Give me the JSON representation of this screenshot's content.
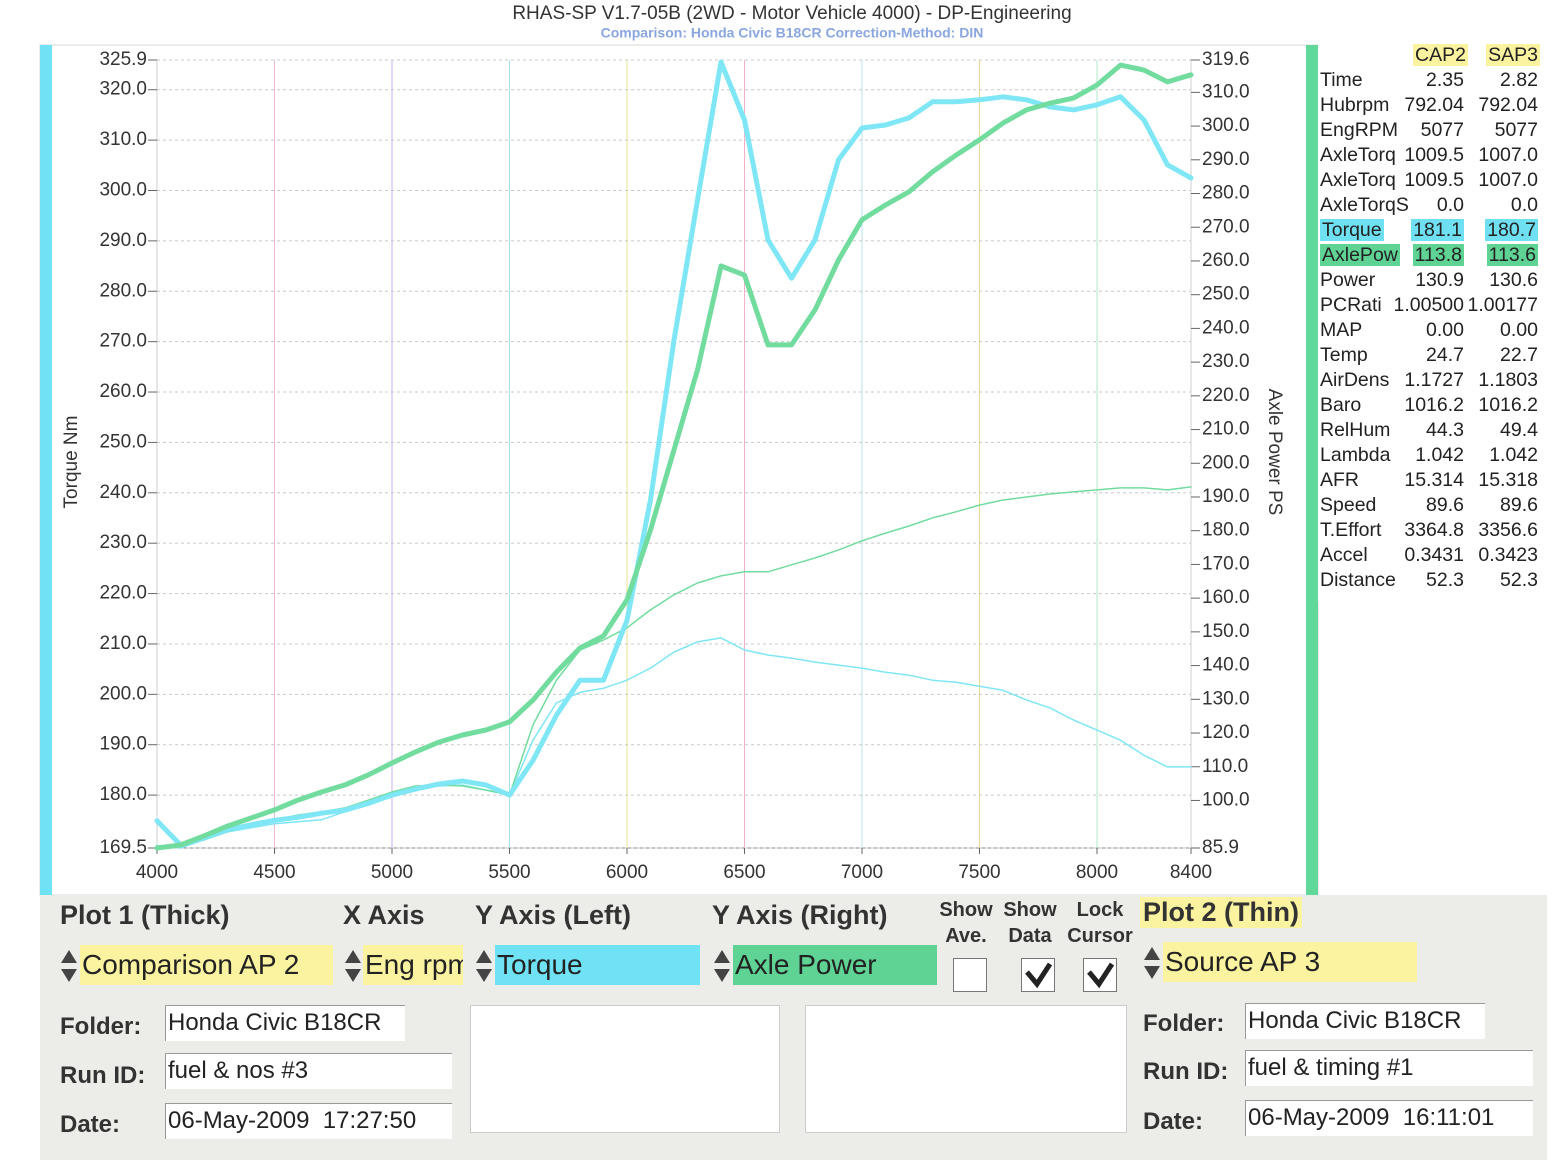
{
  "header": {
    "title": "RHAS-SP V1.7-05B   (2WD - Motor Vehicle 4000) - DP-Engineering",
    "subtitle": "Comparison: Honda Civic B18CR    Correction-Method: DIN"
  },
  "chart_data": {
    "type": "line",
    "y_label": "Torque Nm",
    "y2_label": "Axle Power PS",
    "x": [
      4000,
      4100,
      4200,
      4300,
      4400,
      4500,
      4600,
      4700,
      4800,
      4900,
      5000,
      5100,
      5200,
      5300,
      5400,
      5500,
      5600,
      5700,
      5800,
      5900,
      6000,
      6100,
      6200,
      6300,
      6400,
      6500,
      6600,
      6700,
      6800,
      6900,
      7000,
      7100,
      7200,
      7300,
      7400,
      7500,
      7600,
      7700,
      7800,
      7900,
      8000,
      8100,
      8200,
      8300,
      8400
    ],
    "xlim": [
      4000,
      8400
    ],
    "xticks": [
      4000,
      4500,
      5000,
      5500,
      6000,
      6500,
      7000,
      7500,
      8000,
      8400
    ],
    "ylim": [
      169.5,
      325.9
    ],
    "yticks": [
      169.5,
      {
        "value": 180,
        "label": "180.0"
      },
      {
        "value": 190,
        "label": "190.0"
      },
      {
        "value": 200,
        "label": "200.0"
      },
      {
        "value": 210,
        "label": "210.0"
      },
      {
        "value": 220,
        "label": "220.0"
      },
      {
        "value": 230,
        "label": "230.0"
      },
      {
        "value": 240,
        "label": "240.0"
      },
      {
        "value": 250,
        "label": "250.0"
      },
      {
        "value": 260,
        "label": "260.0"
      },
      {
        "value": 270,
        "label": "270.0"
      },
      {
        "value": 280,
        "label": "280.0"
      },
      {
        "value": 290,
        "label": "290.0"
      },
      {
        "value": 300,
        "label": "300.0"
      },
      {
        "value": 310,
        "label": "310.0"
      },
      {
        "value": 320,
        "label": "320.0"
      },
      325.9
    ],
    "y2lim": [
      85.9,
      319.6
    ],
    "y2ticks": [
      85.9,
      {
        "value": 100,
        "label": "100.0"
      },
      {
        "value": 110,
        "label": "110.0"
      },
      {
        "value": 120,
        "label": "120.0"
      },
      {
        "value": 130,
        "label": "130.0"
      },
      {
        "value": 140,
        "label": "140.0"
      },
      {
        "value": 150,
        "label": "150.0"
      },
      {
        "value": 160,
        "label": "160.0"
      },
      {
        "value": 170,
        "label": "170.0"
      },
      {
        "value": 180,
        "label": "180.0"
      },
      {
        "value": 190,
        "label": "190.0"
      },
      {
        "value": 200,
        "label": "200.0"
      },
      {
        "value": 210,
        "label": "210.0"
      },
      {
        "value": 220,
        "label": "220.0"
      },
      {
        "value": 230,
        "label": "230.0"
      },
      {
        "value": 240,
        "label": "240.0"
      },
      {
        "value": 250,
        "label": "250.0"
      },
      {
        "value": 260,
        "label": "260.0"
      },
      {
        "value": 270,
        "label": "270.0"
      },
      {
        "value": 280,
        "label": "280.0"
      },
      {
        "value": 290,
        "label": "290.0"
      },
      {
        "value": 300,
        "label": "300.0"
      },
      {
        "value": 310,
        "label": "310.0"
      },
      319.6
    ],
    "grid": true,
    "series": [
      {
        "color": "#7fe6f6",
        "style": "thick",
        "values": [
          174.9,
          170.1,
          171.5,
          173.1,
          174.1,
          175.0,
          175.6,
          176.4,
          177.0,
          178.4,
          180.0,
          181.2,
          182.2,
          182.8,
          182.0,
          180.0,
          186.9,
          195.9,
          202.8,
          202.8,
          214.7,
          238.6,
          270.3,
          298.1,
          325.5,
          314.0,
          290.2,
          282.6,
          290.2,
          306.1,
          312.4,
          313.0,
          314.4,
          317.6,
          317.6,
          318.0,
          318.6,
          318.0,
          316.6,
          316.0,
          317.0,
          318.6,
          314.0,
          305.1,
          302.5
        ]
      },
      {
        "color": "#72dc9f",
        "style": "thick",
        "axis": "y2",
        "values": [
          85.9,
          86.8,
          89.5,
          92.4,
          94.8,
          97.2,
          100.1,
          102.5,
          104.6,
          107.6,
          111.1,
          114.4,
          117.3,
          119.4,
          120.9,
          123.3,
          129.8,
          138.1,
          145.2,
          148.8,
          159.5,
          180.2,
          204.0,
          227.7,
          258.5,
          255.8,
          235.1,
          235.1,
          245.5,
          260.3,
          272.2,
          276.6,
          280.5,
          286.4,
          291.4,
          295.9,
          300.9,
          304.8,
          306.8,
          308.3,
          312.2,
          318.1,
          316.6,
          313.1,
          315.2
        ]
      },
      {
        "color": "#7fe6f6",
        "style": "thin",
        "values": [
          170.0,
          169.5,
          171.1,
          172.7,
          173.5,
          174.3,
          174.7,
          175.1,
          176.7,
          178.0,
          180.0,
          181.4,
          181.8,
          182.0,
          181.0,
          180.0,
          190.9,
          198.3,
          200.4,
          201.2,
          202.8,
          205.2,
          208.4,
          210.4,
          211.2,
          208.8,
          207.8,
          207.2,
          206.4,
          205.8,
          205.2,
          204.4,
          203.8,
          202.8,
          202.4,
          201.6,
          200.8,
          198.9,
          197.3,
          194.9,
          192.9,
          190.9,
          187.9,
          185.6,
          185.6
        ]
      },
      {
        "color": "#72dc9f",
        "style": "thin",
        "axis": "y2",
        "values": [
          85.9,
          86.8,
          88.3,
          90.7,
          92.4,
          94.2,
          95.7,
          96.6,
          97.8,
          100.1,
          102.5,
          104.3,
          104.6,
          104.3,
          103.1,
          101.6,
          122.4,
          135.7,
          144.6,
          147.6,
          151.2,
          156.5,
          161.0,
          164.5,
          166.6,
          167.8,
          167.8,
          169.9,
          171.9,
          174.3,
          177.0,
          179.3,
          181.4,
          183.8,
          185.6,
          187.6,
          189.1,
          190.0,
          190.9,
          191.5,
          192.1,
          192.7,
          192.7,
          192.1,
          193.0
        ]
      }
    ]
  },
  "readout": {
    "columns": [
      "CAP2",
      "SAP3"
    ],
    "rows": [
      {
        "label": "Time",
        "values": [
          "2.35",
          "2.82"
        ]
      },
      {
        "label": "Hubrpm",
        "values": [
          "792.04",
          "792.04"
        ]
      },
      {
        "label": "EngRPM",
        "values": [
          "5077",
          "5077"
        ]
      },
      {
        "label": "AxleTorq",
        "values": [
          "1009.5",
          "1007.0"
        ]
      },
      {
        "label": "AxleTorq",
        "values": [
          "1009.5",
          "1007.0"
        ]
      },
      {
        "label": "AxleTorqS",
        "values": [
          "0.0",
          "0.0"
        ]
      },
      {
        "label": "Torque",
        "values": [
          "181.1",
          "180.7"
        ],
        "highlight": "#6fe0f2"
      },
      {
        "label": "AxlePow",
        "values": [
          "113.8",
          "113.6"
        ],
        "highlight": "#5fd394"
      },
      {
        "label": "Power",
        "values": [
          "130.9",
          "130.6"
        ]
      },
      {
        "label": "PCRati",
        "values": [
          "1.00500",
          "1.00177"
        ]
      },
      {
        "label": "MAP",
        "values": [
          "0.00",
          "0.00"
        ]
      },
      {
        "label": "Temp",
        "values": [
          "24.7",
          "22.7"
        ]
      },
      {
        "label": "AirDens",
        "values": [
          "1.1727",
          "1.1803"
        ]
      },
      {
        "label": "Baro",
        "values": [
          "1016.2",
          "1016.2"
        ]
      },
      {
        "label": "RelHum",
        "values": [
          "44.3",
          "49.4"
        ]
      },
      {
        "label": "Lambda",
        "values": [
          "1.042",
          "1.042"
        ]
      },
      {
        "label": "AFR",
        "values": [
          "15.314",
          "15.318"
        ]
      },
      {
        "label": "Speed",
        "values": [
          "89.6",
          "89.6"
        ]
      },
      {
        "label": "T.Effort",
        "values": [
          "3364.8",
          "3356.6"
        ]
      },
      {
        "label": "Accel",
        "values": [
          "0.3431",
          "0.3423"
        ]
      },
      {
        "label": "Distance",
        "values": [
          "52.3",
          "52.3"
        ]
      }
    ]
  },
  "controls": {
    "plot1": {
      "title": "Plot 1 (Thick)",
      "source": "Comparison AP 2",
      "folder_label": "Folder:",
      "folder": "Honda Civic B18CR",
      "run_label": "Run ID:",
      "run": "fuel & nos #3",
      "date_label": "Date:",
      "date": "06-May-2009  17:27:50"
    },
    "x_axis": {
      "title": "X Axis",
      "value": "Eng rpm"
    },
    "y_left": {
      "title": "Y Axis (Left)",
      "value": "Torque"
    },
    "y_right": {
      "title": "Y Axis (Right)",
      "value": "Axle Power"
    },
    "options": [
      {
        "label": "Show Ave.",
        "checked": false
      },
      {
        "label": "Show Data",
        "checked": true
      },
      {
        "label": "Lock Cursor",
        "checked": true
      }
    ],
    "plot2": {
      "title": "Plot 2 (Thin)",
      "source": "Source AP 3",
      "folder_label": "Folder:",
      "folder": "Honda Civic B18CR",
      "run_label": "Run ID:",
      "run": "fuel & timing #1",
      "date_label": "Date:",
      "date": "06-May-2009  16:11:01"
    }
  }
}
